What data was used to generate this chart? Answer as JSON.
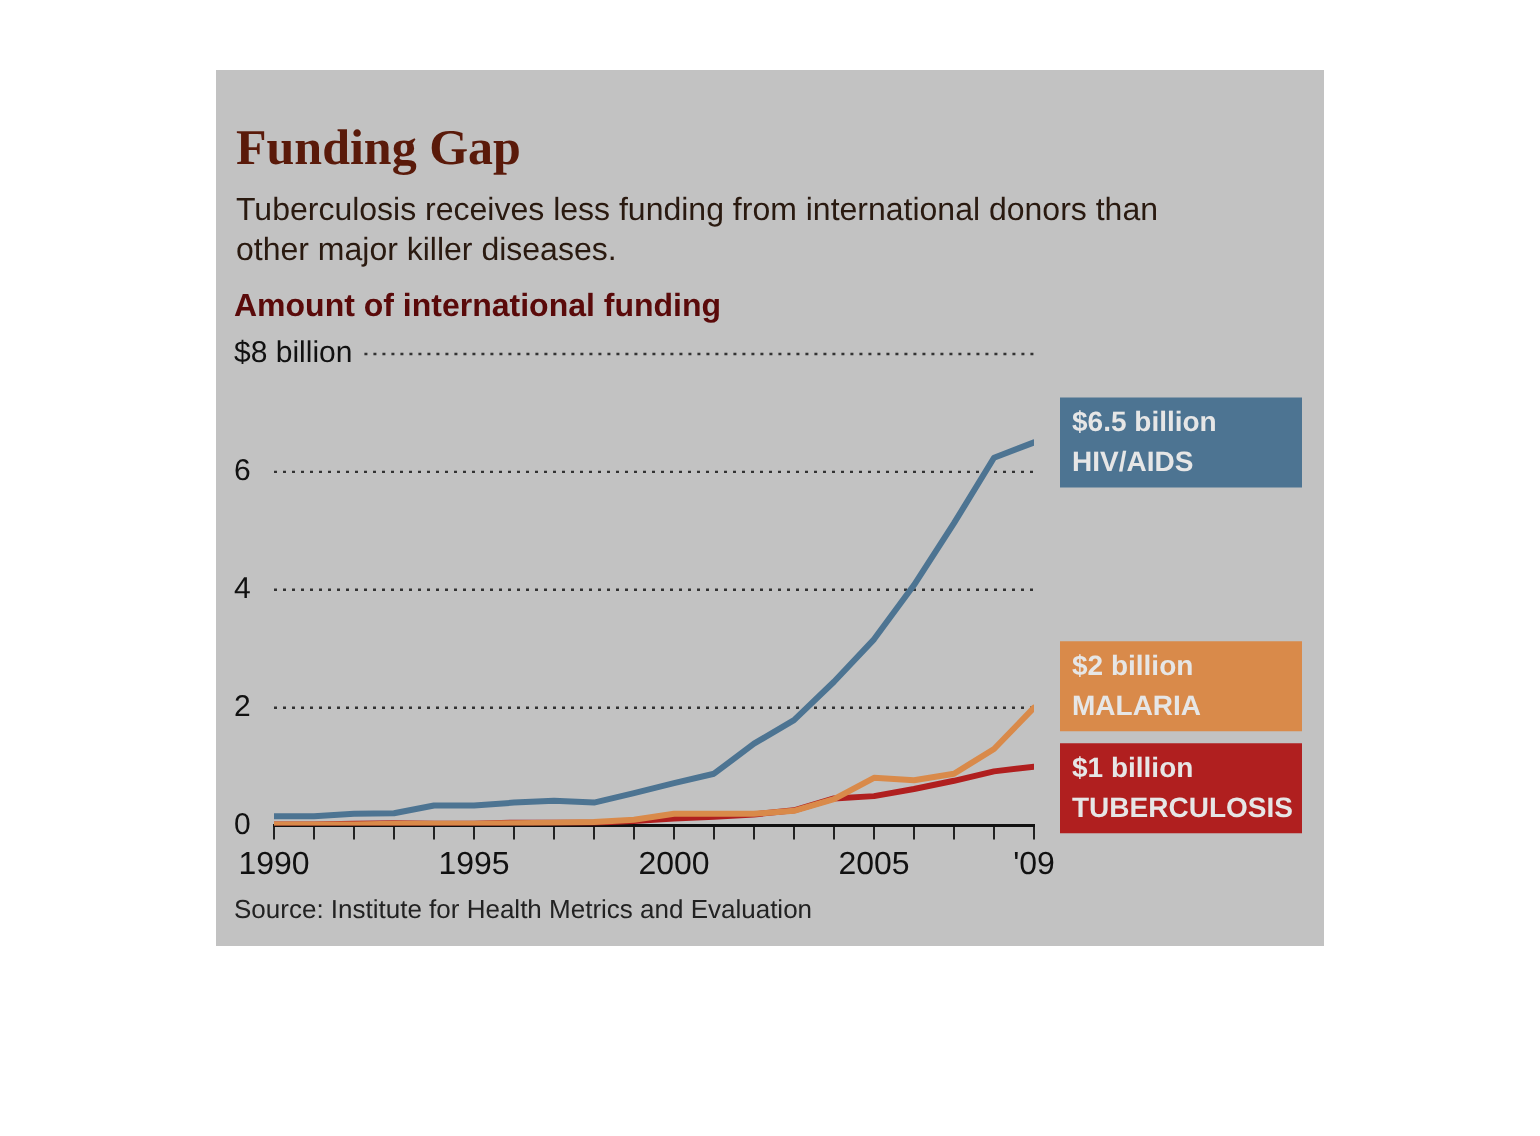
{
  "chart_data": {
    "type": "line",
    "title": "Funding Gap",
    "subtitle": "Tuberculosis receives less funding from international donors than other major killer diseases.",
    "ylabel": "Amount of international funding",
    "x": [
      1990,
      1991,
      1992,
      1993,
      1994,
      1995,
      1996,
      1997,
      1998,
      1999,
      2000,
      2001,
      2002,
      2003,
      2004,
      2005,
      2006,
      2007,
      2008,
      2009
    ],
    "series": [
      {
        "name": "HIV/AIDS",
        "color": "#4d7492",
        "values": [
          0.16,
          0.16,
          0.2,
          0.21,
          0.34,
          0.34,
          0.39,
          0.42,
          0.39,
          0.55,
          0.72,
          0.88,
          1.39,
          1.79,
          2.44,
          3.16,
          4.08,
          5.13,
          6.24,
          6.5
        ],
        "value_labels": [
          null,
          null,
          null,
          null,
          null,
          null,
          null,
          null,
          null,
          null,
          null,
          null,
          null,
          null,
          null,
          null,
          null,
          null,
          null,
          "$6.5 billion"
        ]
      },
      {
        "name": "MALARIA",
        "color": "#d98a4a",
        "values": [
          0.02,
          0.02,
          0.02,
          0.03,
          0.03,
          0.03,
          0.04,
          0.05,
          0.06,
          0.1,
          0.2,
          0.2,
          0.2,
          0.25,
          0.45,
          0.81,
          0.77,
          0.88,
          1.3,
          2
        ],
        "value_labels": [
          null,
          null,
          null,
          null,
          null,
          null,
          null,
          null,
          null,
          null,
          null,
          null,
          null,
          null,
          null,
          null,
          null,
          null,
          null,
          "$2 billion"
        ]
      },
      {
        "name": "TUBERCULOSIS",
        "color": "#b01f1f",
        "values": [
          0.02,
          0.02,
          0.03,
          0.04,
          0.03,
          0.03,
          0.05,
          0.05,
          0.05,
          0.08,
          0.12,
          0.15,
          0.19,
          0.26,
          0.46,
          0.5,
          0.62,
          0.76,
          0.92,
          1
        ],
        "value_labels": [
          null,
          null,
          null,
          null,
          null,
          null,
          null,
          null,
          null,
          null,
          null,
          null,
          null,
          null,
          null,
          null,
          null,
          null,
          null,
          "$1 billion"
        ]
      }
    ],
    "xlim": [
      1990,
      2009
    ],
    "xticks": [
      1990,
      {
        "value": 1991,
        "label": null
      },
      {
        "value": 1992,
        "label": null
      },
      {
        "value": 1993,
        "label": null
      },
      {
        "value": 1994,
        "label": null
      },
      1995,
      {
        "value": 1996,
        "label": null
      },
      {
        "value": 1997,
        "label": null
      },
      {
        "value": 1998,
        "label": null
      },
      {
        "value": 1999,
        "label": null
      },
      2000,
      {
        "value": 2001,
        "label": null
      },
      {
        "value": 2002,
        "label": null
      },
      {
        "value": 2003,
        "label": null
      },
      {
        "value": 2004,
        "label": null
      },
      2005,
      {
        "value": 2006,
        "label": null
      },
      {
        "value": 2007,
        "label": null
      },
      {
        "value": 2008,
        "label": null
      },
      {
        "value": 2009,
        "label": "'09"
      }
    ],
    "ylim": [
      0,
      8
    ],
    "yticks": [
      0,
      2,
      4,
      6,
      {
        "value": 8,
        "label": "$8 billion"
      }
    ],
    "grid": "y",
    "legend": false,
    "marker": "none",
    "line_style": "solid",
    "annotations": [
      "Source: Institute for Health Metrics and Evaluation"
    ]
  }
}
